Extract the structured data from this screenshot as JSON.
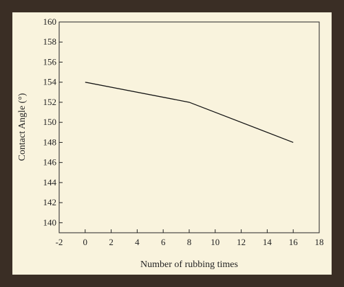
{
  "chart_data": {
    "type": "line",
    "title": "",
    "xlabel": "Number of rubbing times",
    "ylabel": "Contact Angle (°)",
    "xlim": [
      -2,
      18
    ],
    "ylim": [
      139,
      160
    ],
    "x_ticks": [
      -2,
      0,
      2,
      4,
      6,
      8,
      10,
      12,
      14,
      16,
      18
    ],
    "y_ticks": [
      140,
      142,
      144,
      146,
      148,
      150,
      152,
      154,
      156,
      158,
      160
    ],
    "grid": false,
    "series": [
      {
        "x": [
          0,
          8,
          16
        ],
        "y": [
          154,
          152,
          148
        ],
        "color": "#111111"
      }
    ]
  }
}
